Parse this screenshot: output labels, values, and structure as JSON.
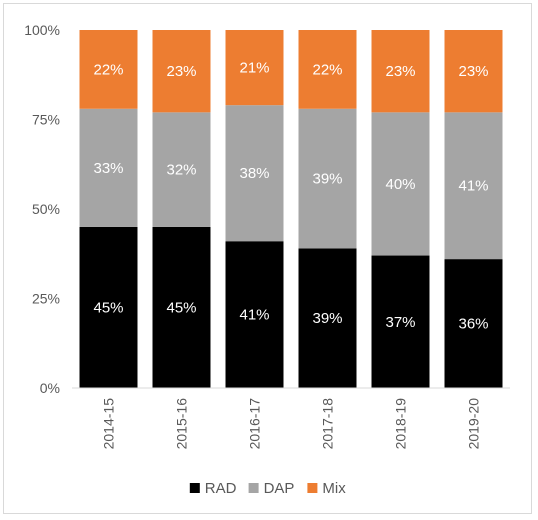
{
  "chart_data": {
    "type": "bar",
    "stacked": true,
    "normalized": true,
    "categories": [
      "2014-15",
      "2015-16",
      "2016-17",
      "2017-18",
      "2018-19",
      "2019-20"
    ],
    "series": [
      {
        "name": "RAD",
        "values": [
          45,
          45,
          41,
          39,
          37,
          36
        ],
        "labels": [
          "45%",
          "45%",
          "41%",
          "39%",
          "37%",
          "36%"
        ],
        "color": "#000000",
        "label_color": "#ffffff"
      },
      {
        "name": "DAP",
        "values": [
          33,
          32,
          38,
          39,
          40,
          41
        ],
        "labels": [
          "33%",
          "32%",
          "38%",
          "39%",
          "40%",
          "41%"
        ],
        "color": "#a5a5a5",
        "label_color": "#ffffff"
      },
      {
        "name": "Mix",
        "values": [
          22,
          23,
          21,
          22,
          23,
          23
        ],
        "labels": [
          "22%",
          "23%",
          "21%",
          "22%",
          "23%",
          "23%"
        ],
        "color": "#ed7d31",
        "label_color": "#ffffff"
      }
    ],
    "y_ticks": [
      {
        "value": 0,
        "label": "0%"
      },
      {
        "value": 25,
        "label": "25%"
      },
      {
        "value": 50,
        "label": "50%"
      },
      {
        "value": 75,
        "label": "75%"
      },
      {
        "value": 100,
        "label": "100%"
      }
    ],
    "ylim": [
      0,
      100
    ],
    "title": "",
    "xlabel": "",
    "ylabel": "",
    "grid": false,
    "legend_position": "bottom",
    "axis_color": "#d9d9d9",
    "tick_label_color": "#595959"
  }
}
